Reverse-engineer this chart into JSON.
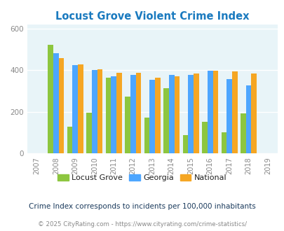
{
  "title": "Locust Grove Violent Crime Index",
  "years": [
    2008,
    2009,
    2010,
    2011,
    2012,
    2013,
    2014,
    2015,
    2016,
    2017,
    2018
  ],
  "locust_grove": [
    520,
    130,
    197,
    365,
    272,
    172,
    315,
    88,
    152,
    103,
    192
  ],
  "georgia": [
    480,
    425,
    400,
    372,
    378,
    355,
    378,
    378,
    398,
    357,
    328
  ],
  "national": [
    458,
    428,
    405,
    388,
    388,
    365,
    372,
    383,
    398,
    394,
    383
  ],
  "bar_colors": {
    "locust_grove": "#8dc63f",
    "georgia": "#4da6ff",
    "national": "#f5a623"
  },
  "ylim": [
    0,
    620
  ],
  "yticks": [
    0,
    200,
    400,
    600
  ],
  "xlabel_years": [
    2007,
    2008,
    2009,
    2010,
    2011,
    2012,
    2013,
    2014,
    2015,
    2016,
    2017,
    2018,
    2019
  ],
  "bg_color": "#e8f4f8",
  "title_color": "#1a7abf",
  "footnote1": "Crime Index corresponds to incidents per 100,000 inhabitants",
  "footnote2": "© 2025 CityRating.com - https://www.cityrating.com/crime-statistics/",
  "legend_labels": [
    "Locust Grove",
    "Georgia",
    "National"
  ],
  "bar_width": 0.28
}
